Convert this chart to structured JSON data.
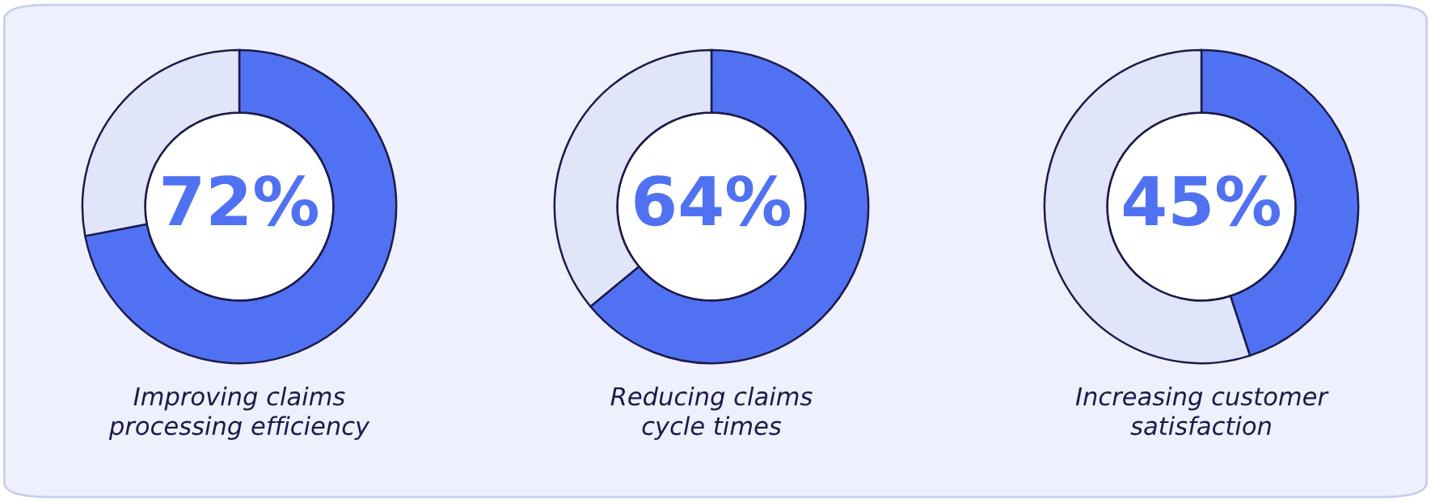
{
  "chart_data": [
    {
      "type": "donut",
      "categories": [
        null,
        null
      ],
      "values": [
        72,
        28
      ],
      "colors": [
        "#5072f2",
        "#e1e5fa"
      ],
      "value_labels": [
        "72%",
        null
      ],
      "xlabel": "Improving claims\nprocessing efficiency"
    },
    {
      "type": "donut",
      "categories": [
        null,
        null
      ],
      "values": [
        64,
        36
      ],
      "colors": [
        "#5072f2",
        "#e1e5fa"
      ],
      "value_labels": [
        "64%",
        null
      ],
      "xlabel": "Reducing claims\ncycle times"
    },
    {
      "type": "donut",
      "categories": [
        null,
        null
      ],
      "values": [
        45,
        55
      ],
      "colors": [
        "#5072f2",
        "#e1e5fa"
      ],
      "value_labels": [
        "45%",
        null
      ],
      "xlabel": "Increasing customer\nsatisfaction"
    }
  ]
}
